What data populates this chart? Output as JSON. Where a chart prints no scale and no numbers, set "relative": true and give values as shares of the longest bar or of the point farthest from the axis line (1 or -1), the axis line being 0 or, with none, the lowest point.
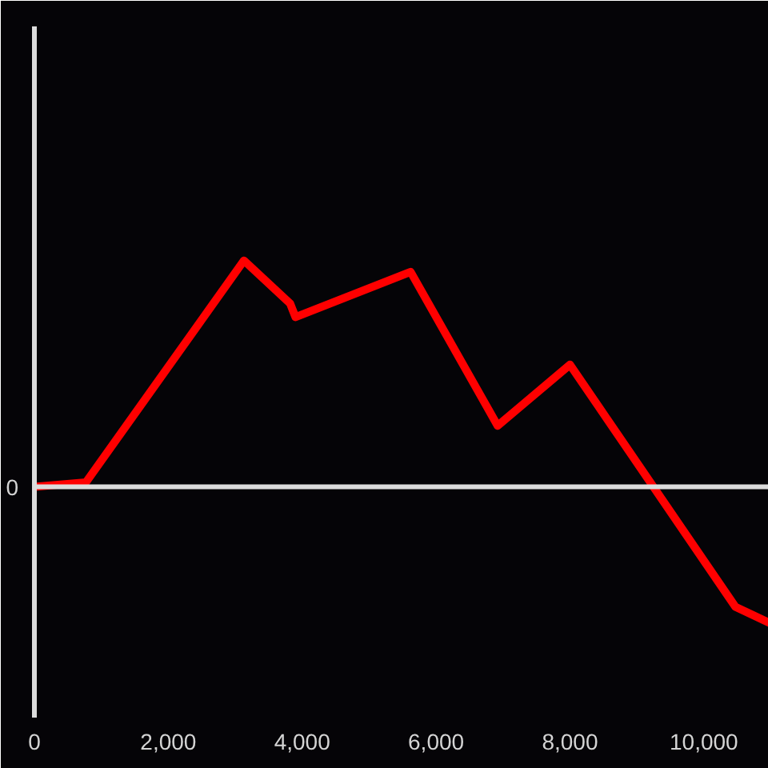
{
  "chart_data": {
    "type": "line",
    "relative": true,
    "x": [
      0,
      770,
      3130,
      3820,
      3900,
      5620,
      6920,
      8000,
      10470,
      10970
    ],
    "series": [
      {
        "color": "#ff0000",
        "values": [
          0,
          0.02,
          1,
          0.81,
          0.75,
          0.95,
          0.27,
          0.54,
          -0.53,
          -0.6
        ]
      }
    ],
    "xlim": [
      0,
      10970
    ],
    "xticks": [
      0,
      {
        "value": 2000,
        "label": "2,000"
      },
      {
        "value": 4000,
        "label": "4,000"
      },
      {
        "value": 6000,
        "label": "6,000"
      },
      {
        "value": 8000,
        "label": "8,000"
      },
      {
        "value": 10000,
        "label": "10,000"
      }
    ],
    "ref_lines": [
      {
        "axis": "y",
        "value": 0,
        "label": "0",
        "color": "#dcdcdc"
      }
    ],
    "line_style": "solid"
  }
}
